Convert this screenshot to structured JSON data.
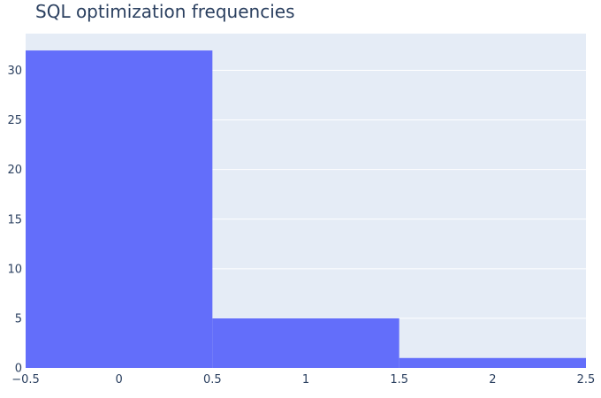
{
  "chart_data": {
    "type": "bar",
    "title": "SQL optimization frequencies",
    "xlabel": "",
    "ylabel": "",
    "bins": [
      {
        "start": -0.5,
        "end": 0.5,
        "value": 32
      },
      {
        "start": 0.5,
        "end": 1.5,
        "value": 5
      },
      {
        "start": 1.5,
        "end": 2.5,
        "value": 1
      }
    ],
    "xlim": [
      -0.5,
      2.5
    ],
    "ylim": [
      0,
      33.7
    ],
    "x_ticks": [
      "−0.5",
      "0",
      "0.5",
      "1",
      "1.5",
      "2",
      "2.5"
    ],
    "x_tick_values": [
      -0.5,
      0,
      0.5,
      1,
      1.5,
      2,
      2.5
    ],
    "y_ticks": [
      "0",
      "5",
      "10",
      "15",
      "20",
      "25",
      "30"
    ],
    "y_tick_values": [
      0,
      5,
      10,
      15,
      20,
      25,
      30
    ],
    "grid": true,
    "colors": {
      "bar": "#636efa",
      "plot_bg": "#e5ecf6",
      "grid": "#ffffff",
      "text": "#2a3f5f"
    }
  }
}
